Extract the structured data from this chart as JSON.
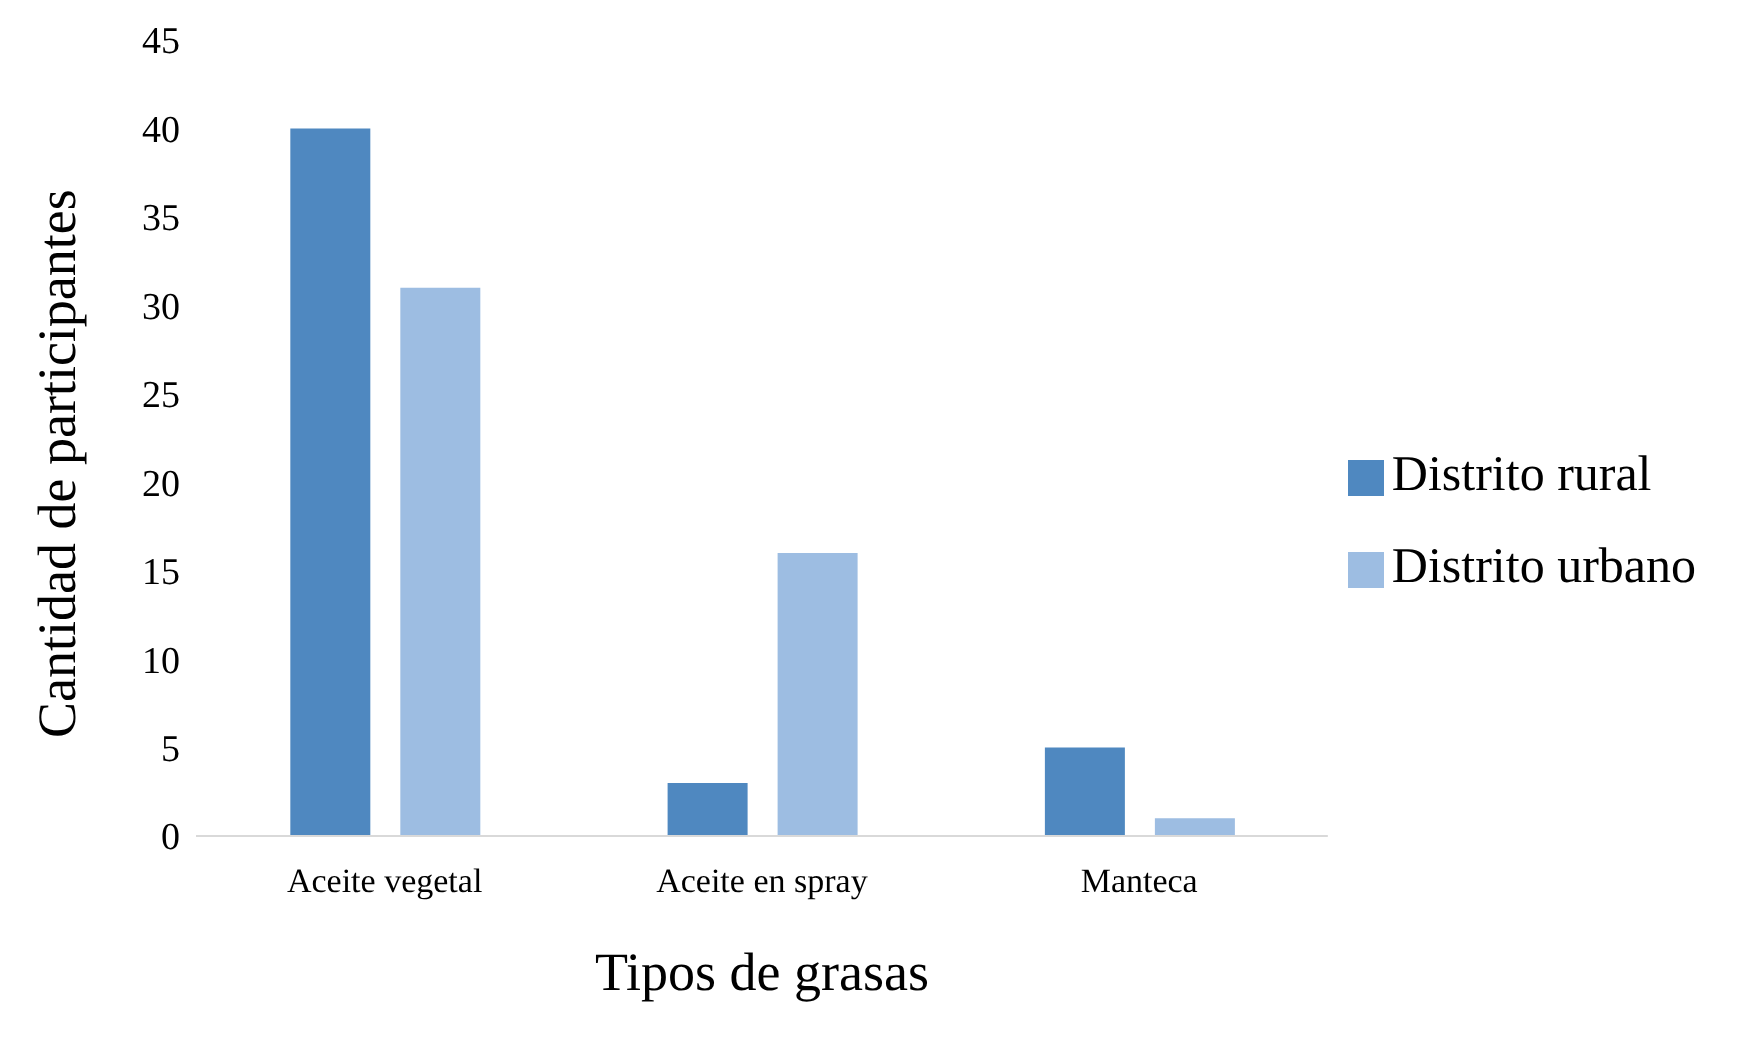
{
  "chart_data": {
    "type": "bar",
    "xlabel": "Tipos de grasas",
    "ylabel": "Cantidad de participantes",
    "categories": [
      "Aceite vegetal",
      "Aceite en spray",
      "Manteca"
    ],
    "series": [
      {
        "name": "Distrito rural",
        "color": "#4f88c0",
        "values": [
          40,
          3,
          5
        ]
      },
      {
        "name": "Distrito urbano",
        "color": "#9dbde2",
        "values": [
          31,
          16,
          1
        ]
      }
    ],
    "ylim": [
      0,
      45
    ],
    "yticks": [
      0,
      5,
      10,
      15,
      20,
      25,
      30,
      35,
      40,
      45
    ],
    "grid": false,
    "legend": "right"
  }
}
